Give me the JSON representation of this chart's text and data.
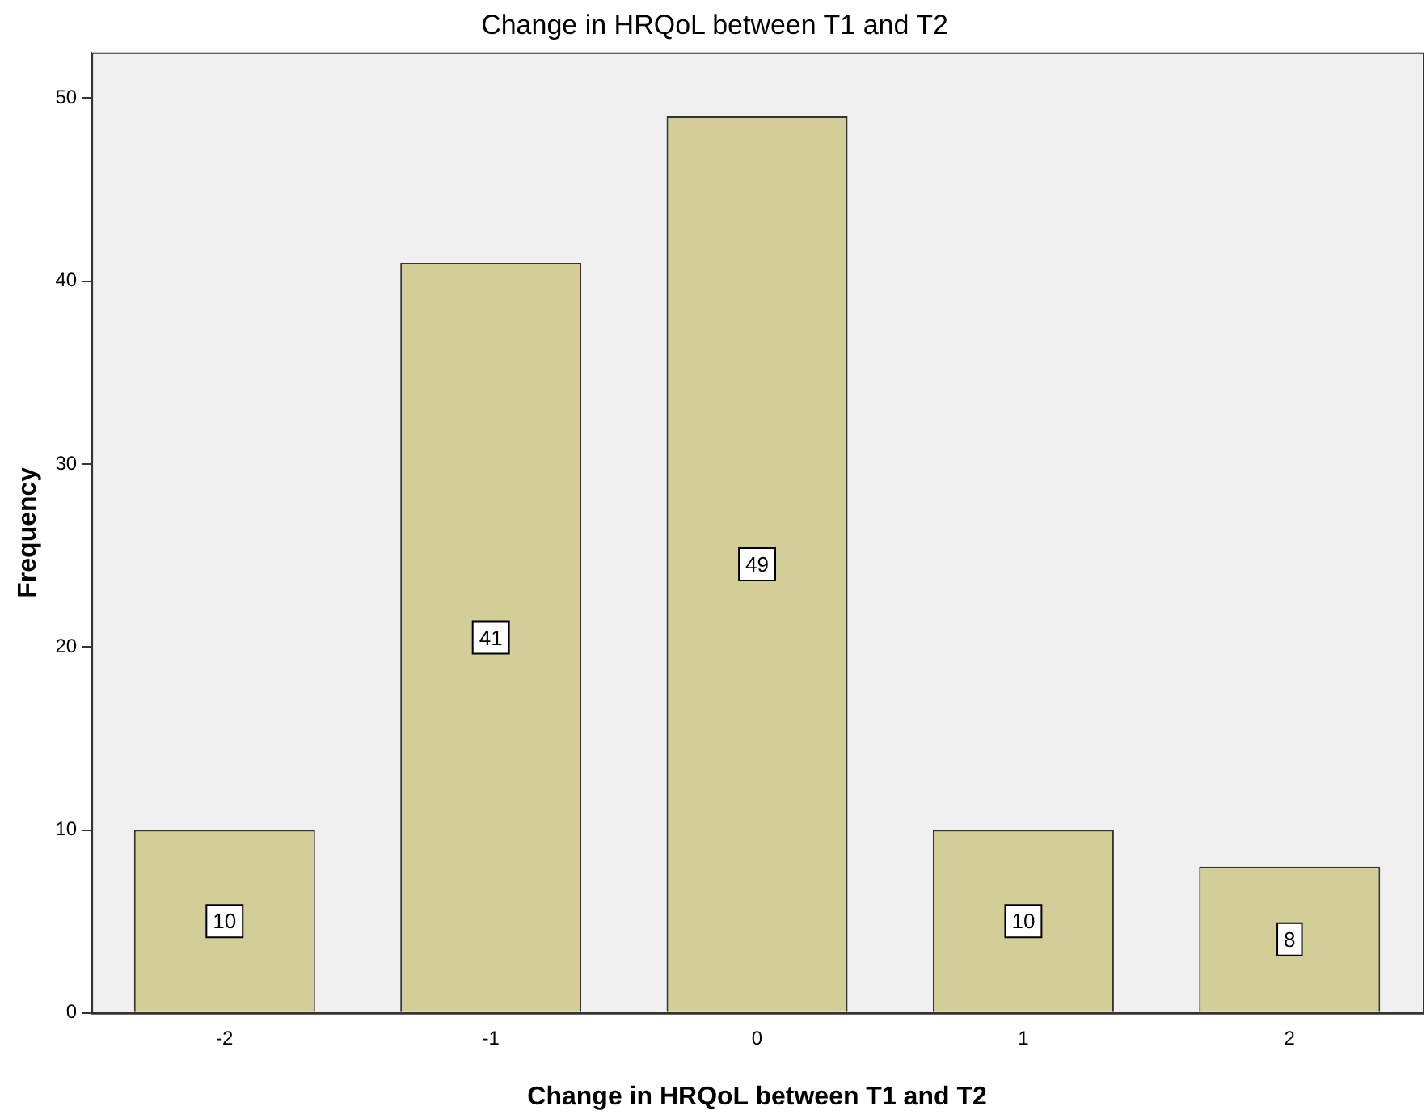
{
  "chart_data": {
    "type": "bar",
    "title": "Change in HRQoL between T1 and T2",
    "xlabel": "Change in HRQoL between T1 and T2",
    "ylabel": "Frequency",
    "categories": [
      "-2",
      "-1",
      "0",
      "1",
      "2"
    ],
    "values": [
      10,
      41,
      49,
      10,
      8
    ],
    "color": "#d3ce97",
    "ylim": [
      0,
      52.5
    ],
    "yticks": [
      0,
      10,
      20,
      30,
      40,
      50
    ],
    "grid": false,
    "data_labels": true
  }
}
